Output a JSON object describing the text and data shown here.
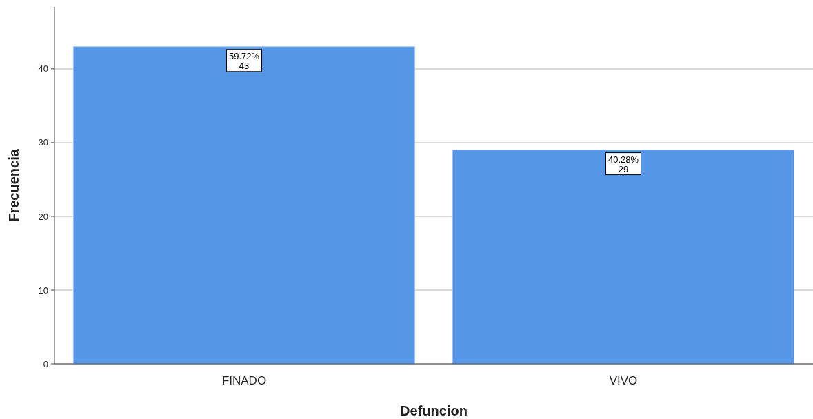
{
  "chart_data": {
    "type": "bar",
    "xlabel": "Defuncion",
    "ylabel": "Frecuencia",
    "categories": [
      "FINADO",
      "VIVO"
    ],
    "values": [
      43,
      29
    ],
    "value_labels": [
      "59.72%\n43",
      "40.28%\n29"
    ],
    "color": "#5596e6",
    "ylim": [
      0,
      48.4
    ],
    "yticks": [
      0,
      10,
      20,
      30,
      40
    ],
    "grid": "y"
  }
}
